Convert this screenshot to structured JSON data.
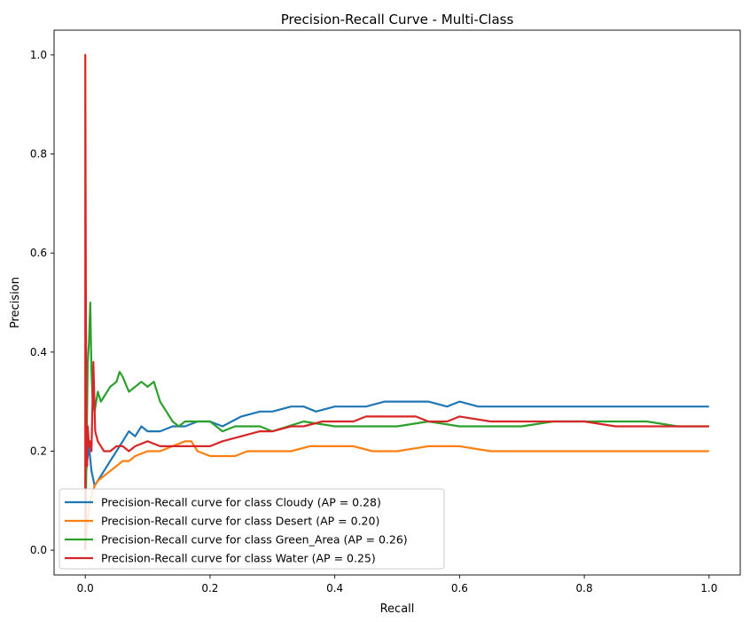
{
  "chart_data": {
    "type": "line",
    "title": "Precision-Recall Curve - Multi-Class",
    "xlabel": "Recall",
    "ylabel": "Precision",
    "xlim": [
      -0.05,
      1.05
    ],
    "ylim": [
      -0.05,
      1.05
    ],
    "xticks": [
      0.0,
      0.2,
      0.4,
      0.6,
      0.8,
      1.0
    ],
    "yticks": [
      0.0,
      0.2,
      0.4,
      0.6,
      0.8,
      1.0
    ],
    "xtick_labels": [
      "0.0",
      "0.2",
      "0.4",
      "0.6",
      "0.8",
      "1.0"
    ],
    "ytick_labels": [
      "0.0",
      "0.2",
      "0.4",
      "0.6",
      "0.8",
      "1.0"
    ],
    "grid": false,
    "legend_position": "lower-left",
    "series": [
      {
        "name": "Precision-Recall curve for class Cloudy (AP = 0.28)",
        "color": "#1f77b4",
        "x": [
          0.0,
          0.003,
          0.006,
          0.01,
          0.015,
          0.02,
          0.03,
          0.04,
          0.05,
          0.06,
          0.07,
          0.08,
          0.09,
          0.1,
          0.12,
          0.14,
          0.16,
          0.18,
          0.2,
          0.22,
          0.25,
          0.28,
          0.3,
          0.33,
          0.35,
          0.37,
          0.4,
          0.43,
          0.45,
          0.48,
          0.5,
          0.53,
          0.55,
          0.58,
          0.6,
          0.63,
          0.65,
          0.7,
          0.75,
          0.8,
          0.85,
          0.9,
          0.95,
          1.0
        ],
        "y": [
          0.14,
          0.18,
          0.21,
          0.16,
          0.13,
          0.14,
          0.16,
          0.18,
          0.2,
          0.22,
          0.24,
          0.23,
          0.25,
          0.24,
          0.24,
          0.25,
          0.25,
          0.26,
          0.26,
          0.25,
          0.27,
          0.28,
          0.28,
          0.29,
          0.29,
          0.28,
          0.29,
          0.29,
          0.29,
          0.3,
          0.3,
          0.3,
          0.3,
          0.29,
          0.3,
          0.29,
          0.29,
          0.29,
          0.29,
          0.29,
          0.29,
          0.29,
          0.29,
          0.29
        ]
      },
      {
        "name": "Precision-Recall curve for class Desert (AP = 0.20)",
        "color": "#ff7f0e",
        "x": [
          0.0,
          0.003,
          0.006,
          0.01,
          0.015,
          0.02,
          0.03,
          0.04,
          0.05,
          0.06,
          0.07,
          0.08,
          0.1,
          0.12,
          0.14,
          0.16,
          0.17,
          0.18,
          0.2,
          0.22,
          0.24,
          0.26,
          0.28,
          0.3,
          0.33,
          0.36,
          0.4,
          0.43,
          0.46,
          0.5,
          0.55,
          0.6,
          0.65,
          0.7,
          0.75,
          0.8,
          0.85,
          0.9,
          0.95,
          1.0
        ],
        "y": [
          0.0,
          0.05,
          0.09,
          0.11,
          0.13,
          0.14,
          0.15,
          0.16,
          0.17,
          0.18,
          0.18,
          0.19,
          0.2,
          0.2,
          0.21,
          0.22,
          0.22,
          0.2,
          0.19,
          0.19,
          0.19,
          0.2,
          0.2,
          0.2,
          0.2,
          0.21,
          0.21,
          0.21,
          0.2,
          0.2,
          0.21,
          0.21,
          0.2,
          0.2,
          0.2,
          0.2,
          0.2,
          0.2,
          0.2,
          0.2
        ]
      },
      {
        "name": "Precision-Recall curve for class Green_Area (AP = 0.26)",
        "color": "#2ca02c",
        "x": [
          0.0,
          0.002,
          0.004,
          0.006,
          0.008,
          0.01,
          0.012,
          0.015,
          0.02,
          0.025,
          0.03,
          0.04,
          0.05,
          0.055,
          0.06,
          0.07,
          0.08,
          0.09,
          0.1,
          0.11,
          0.12,
          0.13,
          0.14,
          0.15,
          0.16,
          0.18,
          0.2,
          0.22,
          0.24,
          0.26,
          0.28,
          0.3,
          0.35,
          0.4,
          0.45,
          0.5,
          0.55,
          0.6,
          0.65,
          0.7,
          0.75,
          0.8,
          0.85,
          0.9,
          0.95,
          1.0
        ],
        "y": [
          0.0,
          0.2,
          0.38,
          0.42,
          0.5,
          0.36,
          0.3,
          0.28,
          0.32,
          0.3,
          0.31,
          0.33,
          0.34,
          0.36,
          0.35,
          0.32,
          0.33,
          0.34,
          0.33,
          0.34,
          0.3,
          0.28,
          0.26,
          0.25,
          0.26,
          0.26,
          0.26,
          0.24,
          0.25,
          0.25,
          0.25,
          0.24,
          0.26,
          0.25,
          0.25,
          0.25,
          0.26,
          0.25,
          0.25,
          0.25,
          0.26,
          0.26,
          0.26,
          0.26,
          0.25,
          0.25
        ]
      },
      {
        "name": "Precision-Recall curve for class Water (AP = 0.25)",
        "color": "#d62728",
        "x": [
          0.0,
          0.0,
          0.001,
          0.002,
          0.003,
          0.004,
          0.006,
          0.008,
          0.01,
          0.013,
          0.016,
          0.02,
          0.025,
          0.03,
          0.04,
          0.05,
          0.06,
          0.07,
          0.08,
          0.1,
          0.12,
          0.14,
          0.16,
          0.18,
          0.2,
          0.22,
          0.25,
          0.28,
          0.3,
          0.33,
          0.35,
          0.38,
          0.4,
          0.43,
          0.45,
          0.48,
          0.5,
          0.53,
          0.55,
          0.58,
          0.6,
          0.65,
          0.7,
          0.75,
          0.8,
          0.85,
          0.9,
          0.95,
          1.0
        ],
        "y": [
          0.0,
          1.0,
          0.5,
          0.2,
          0.17,
          0.25,
          0.21,
          0.22,
          0.2,
          0.38,
          0.24,
          0.22,
          0.21,
          0.2,
          0.2,
          0.21,
          0.21,
          0.2,
          0.21,
          0.22,
          0.21,
          0.21,
          0.21,
          0.21,
          0.21,
          0.22,
          0.23,
          0.24,
          0.24,
          0.25,
          0.25,
          0.26,
          0.26,
          0.26,
          0.27,
          0.27,
          0.27,
          0.27,
          0.26,
          0.26,
          0.27,
          0.26,
          0.26,
          0.26,
          0.26,
          0.25,
          0.25,
          0.25,
          0.25
        ]
      }
    ]
  }
}
